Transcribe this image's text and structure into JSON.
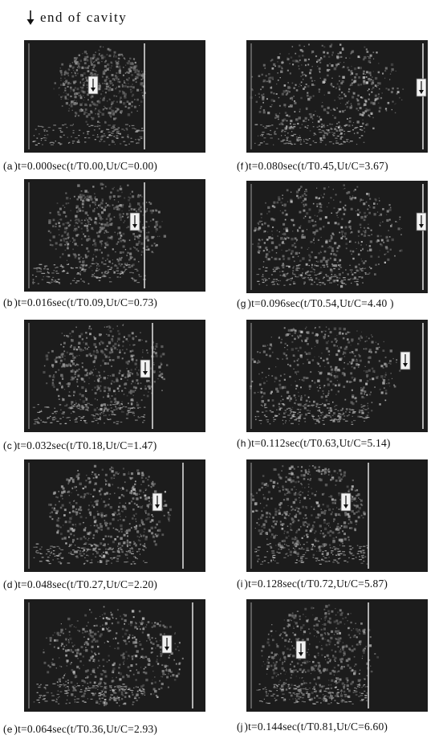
{
  "legend": {
    "text": "end  of  cavity",
    "icon": "down-arrow-icon"
  },
  "panels": [
    {
      "label": "a",
      "caption": "t=0.000sec(t/T0.00,Ut/C=0.00)",
      "close": ")"
    },
    {
      "label": "b",
      "caption": "t=0.016sec(t/T0.09,Ut/C=0.73)",
      "close": ")"
    },
    {
      "label": "c",
      "caption": "t=0.032sec(t/T0.18,Ut/C=1.47)",
      "close": ")"
    },
    {
      "label": "d",
      "caption": "t=0.048sec(t/T0.27,Ut/C=2.20)",
      "close": ")"
    },
    {
      "label": "e",
      "caption": "t=0.064sec(t/T0.36,Ut/C=2.93)",
      "close": ")"
    },
    {
      "label": "f",
      "caption": "t=0.080sec(t/T0.45,Ut/C=3.67)",
      "close": ")"
    },
    {
      "label": "g",
      "caption": "t=0.096sec(t/T0.54,Ut/C=4.40",
      "close": ")"
    },
    {
      "label": "h",
      "caption": "t=0.112sec(t/T0.63,Ut/C=5.14)",
      "close": ")"
    },
    {
      "label": "i",
      "caption": "t=0.128sec(t/T0.72,Ut/C=5.87)",
      "close": ")"
    },
    {
      "label": "j",
      "caption": "t=0.144sec(t/T0.81,Ut/C=6.60)",
      "close": ")"
    }
  ]
}
